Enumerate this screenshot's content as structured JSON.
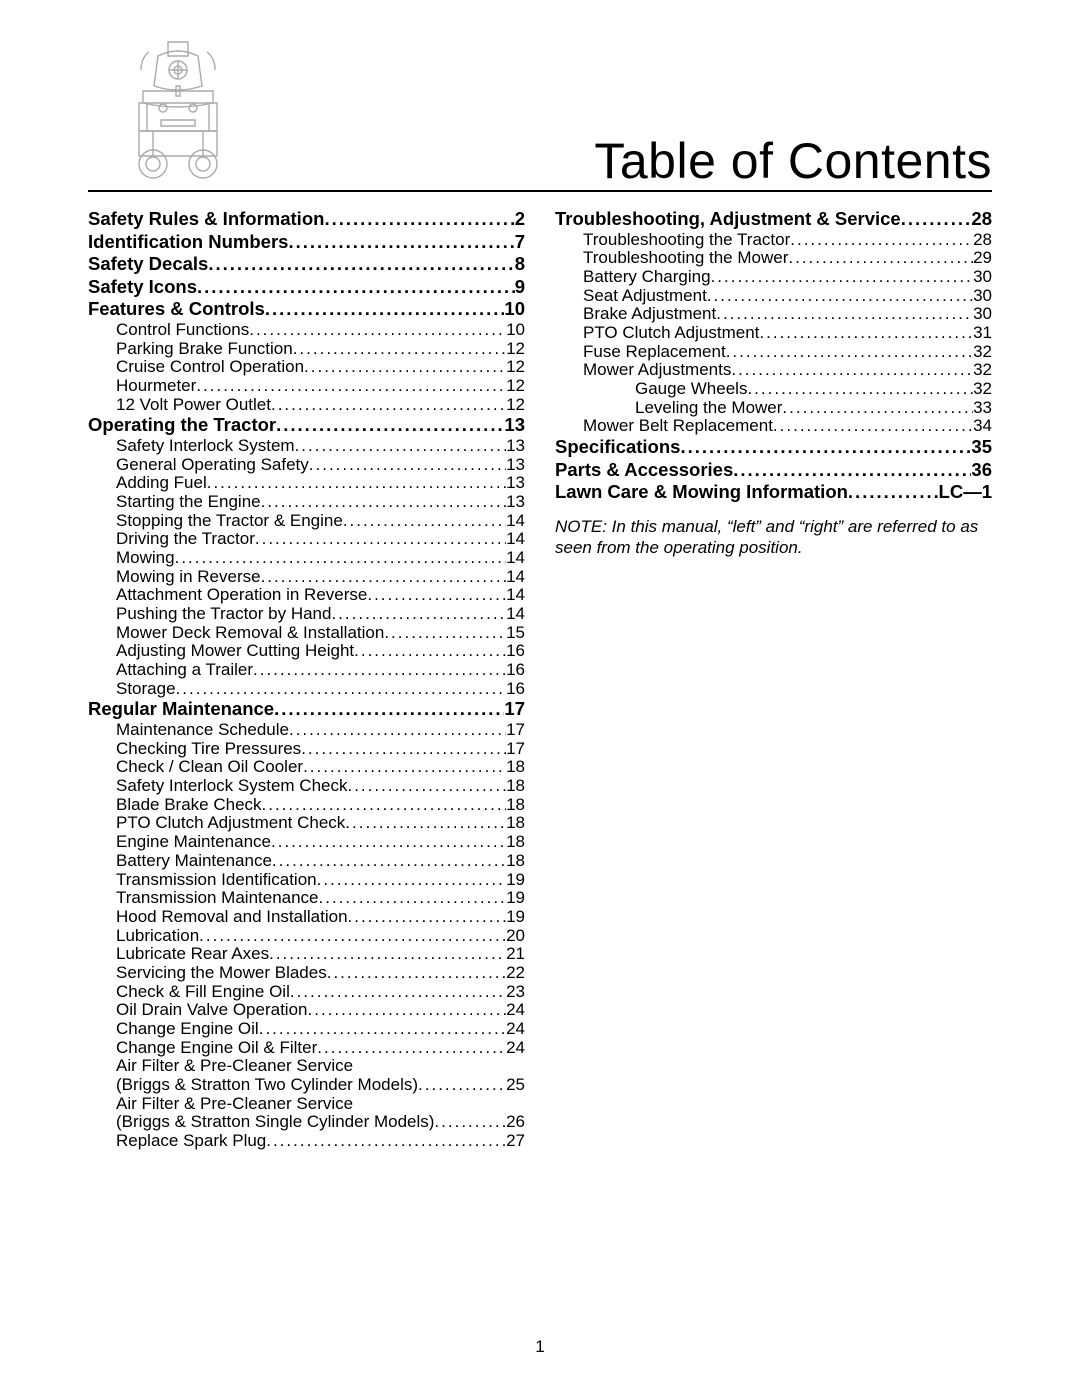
{
  "title": "Table of Contents",
  "page_number": "1",
  "note": "NOTE: In this manual, “left” and “right” are referred to as seen from the operating position.",
  "left_column": [
    {
      "level": 0,
      "label": "Safety Rules & Information",
      "page": "2"
    },
    {
      "level": 0,
      "label": "Identification Numbers",
      "page": "7"
    },
    {
      "level": 0,
      "label": "Safety Decals",
      "page": "8"
    },
    {
      "level": 0,
      "label": "Safety Icons",
      "page": "9"
    },
    {
      "level": 0,
      "label": "Features & Controls",
      "page": "10"
    },
    {
      "level": 1,
      "label": "Control Functions",
      "page": "10"
    },
    {
      "level": 1,
      "label": "Parking Brake Function",
      "page": "12"
    },
    {
      "level": 1,
      "label": "Cruise Control Operation",
      "page": "12"
    },
    {
      "level": 1,
      "label": "Hourmeter",
      "page": "12"
    },
    {
      "level": 1,
      "label": "12 Volt Power Outlet",
      "page": "12"
    },
    {
      "level": 0,
      "label": "Operating the Tractor",
      "page": "13"
    },
    {
      "level": 1,
      "label": "Safety Interlock System",
      "page": "13"
    },
    {
      "level": 1,
      "label": "General Operating Safety",
      "page": "13"
    },
    {
      "level": 1,
      "label": "Adding Fuel",
      "page": "13"
    },
    {
      "level": 1,
      "label": "Starting the Engine",
      "page": "13"
    },
    {
      "level": 1,
      "label": "Stopping the Tractor & Engine",
      "page": "14"
    },
    {
      "level": 1,
      "label": "Driving the Tractor",
      "page": "14"
    },
    {
      "level": 1,
      "label": "Mowing",
      "page": "14"
    },
    {
      "level": 1,
      "label": "Mowing in Reverse",
      "page": "14"
    },
    {
      "level": 1,
      "label": "Attachment Operation in Reverse",
      "page": "14"
    },
    {
      "level": 1,
      "label": "Pushing the Tractor by Hand",
      "page": "14"
    },
    {
      "level": 1,
      "label": "Mower Deck Removal & Installation",
      "page": "15"
    },
    {
      "level": 1,
      "label": "Adjusting Mower Cutting Height",
      "page": "16"
    },
    {
      "level": 1,
      "label": "Attaching a Trailer",
      "page": "16"
    },
    {
      "level": 1,
      "label": "Storage",
      "page": "16"
    },
    {
      "level": 0,
      "label": "Regular Maintenance",
      "page": "17"
    },
    {
      "level": 1,
      "label": "Maintenance Schedule",
      "page": "17"
    },
    {
      "level": 1,
      "label": "Checking Tire Pressures",
      "page": "17"
    },
    {
      "level": 1,
      "label": "Check / Clean Oil Cooler",
      "page": "18"
    },
    {
      "level": 1,
      "label": "Safety Interlock System Check",
      "page": "18"
    },
    {
      "level": 1,
      "label": "Blade Brake Check",
      "page": "18"
    },
    {
      "level": 1,
      "label": "PTO Clutch Adjustment Check",
      "page": "18"
    },
    {
      "level": 1,
      "label": "Engine Maintenance",
      "page": "18"
    },
    {
      "level": 1,
      "label": "Battery Maintenance",
      "page": "18"
    },
    {
      "level": 1,
      "label": "Transmission Identification",
      "page": "19"
    },
    {
      "level": 1,
      "label": "Transmission Maintenance",
      "page": "19"
    },
    {
      "level": 1,
      "label": "Hood Removal and Installation",
      "page": "19"
    },
    {
      "level": 1,
      "label": "Lubrication",
      "page": "20"
    },
    {
      "level": 1,
      "label": "Lubricate Rear Axes",
      "page": "21"
    },
    {
      "level": 1,
      "label": "Servicing the Mower Blades",
      "page": "22"
    },
    {
      "level": 1,
      "label": "Check & Fill Engine Oil",
      "page": "23"
    },
    {
      "level": 1,
      "label": "Oil Drain Valve Operation",
      "page": "24"
    },
    {
      "level": 1,
      "label": "Change Engine Oil",
      "page": "24"
    },
    {
      "level": 1,
      "label": "Change Engine Oil & Filter",
      "page": "24"
    },
    {
      "level": 1,
      "multiline": true,
      "first": "Air Filter & Pre-Cleaner Service",
      "second": "(Briggs & Stratton Two Cylinder Models)",
      "page": "25"
    },
    {
      "level": 1,
      "multiline": true,
      "first": "Air Filter & Pre-Cleaner Service",
      "second": "(Briggs & Stratton Single Cylinder Models)",
      "page": "26"
    },
    {
      "level": 1,
      "label": "Replace Spark Plug",
      "page": "27"
    }
  ],
  "right_column": [
    {
      "level": 0,
      "label": "Troubleshooting, Adjustment & Service",
      "page": "28"
    },
    {
      "level": 1,
      "label": "Troubleshooting the Tractor",
      "page": "28"
    },
    {
      "level": 1,
      "label": "Troubleshooting the Mower",
      "page": "29"
    },
    {
      "level": 1,
      "label": "Battery Charging",
      "page": "30"
    },
    {
      "level": 1,
      "label": "Seat Adjustment",
      "page": "30"
    },
    {
      "level": 1,
      "label": "Brake Adjustment",
      "page": "30"
    },
    {
      "level": 1,
      "label": "PTO Clutch Adjustment",
      "page": "31"
    },
    {
      "level": 1,
      "label": "Fuse Replacement",
      "page": "32"
    },
    {
      "level": 1,
      "label": "Mower Adjustments",
      "page": "32"
    },
    {
      "level": 2,
      "label": "Gauge Wheels",
      "page": "32"
    },
    {
      "level": 2,
      "label": "Leveling the Mower",
      "page": "33"
    },
    {
      "level": 1,
      "label": "Mower Belt Replacement",
      "page": "34"
    },
    {
      "level": 0,
      "label": "Specifications",
      "page": "35"
    },
    {
      "level": 0,
      "label": "Parts & Accessories",
      "page": "36"
    },
    {
      "level": 0,
      "label": "Lawn Care & Mowing Information",
      "page": "LC—1"
    }
  ]
}
